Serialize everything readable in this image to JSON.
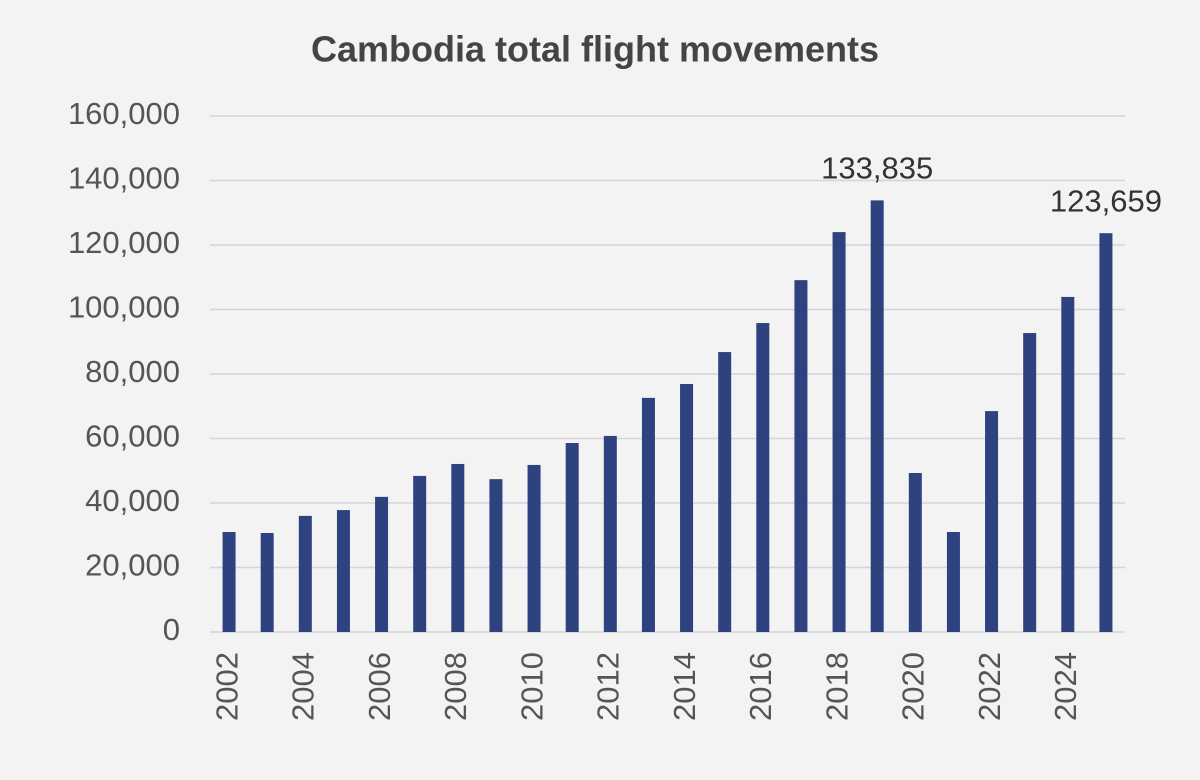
{
  "chart_data": {
    "type": "bar",
    "title": "Cambodia total flight movements",
    "categories": [
      "2002",
      null,
      "2004",
      null,
      "2006",
      null,
      "2008",
      null,
      "2010",
      null,
      "2012",
      null,
      "2014",
      null,
      "2016",
      null,
      "2018",
      null,
      "2020",
      null,
      "2022",
      null,
      "2024",
      null
    ],
    "values": [
      31000,
      30700,
      36000,
      37800,
      41900,
      48400,
      52100,
      47400,
      51800,
      58600,
      60800,
      72600,
      76900,
      86800,
      95800,
      109100,
      124000,
      133835,
      49300,
      31000,
      68500,
      92700,
      103900,
      123659
    ],
    "value_labels": [
      null,
      null,
      null,
      null,
      null,
      null,
      null,
      null,
      null,
      null,
      null,
      null,
      null,
      null,
      null,
      null,
      null,
      "133,835",
      null,
      null,
      null,
      null,
      null,
      "123,659"
    ],
    "color": "#2e4280",
    "ylim": [
      0,
      160000
    ],
    "yticks": [
      0,
      {
        "value": 20000,
        "label": "20,000"
      },
      {
        "value": 40000,
        "label": "40,000"
      },
      {
        "value": 60000,
        "label": "60,000"
      },
      {
        "value": 80000,
        "label": "80,000"
      },
      {
        "value": 100000,
        "label": "100,000"
      },
      {
        "value": 120000,
        "label": "120,000"
      },
      {
        "value": 140000,
        "label": "140,000"
      },
      {
        "value": 160000,
        "label": "160,000"
      }
    ],
    "grid": true
  }
}
